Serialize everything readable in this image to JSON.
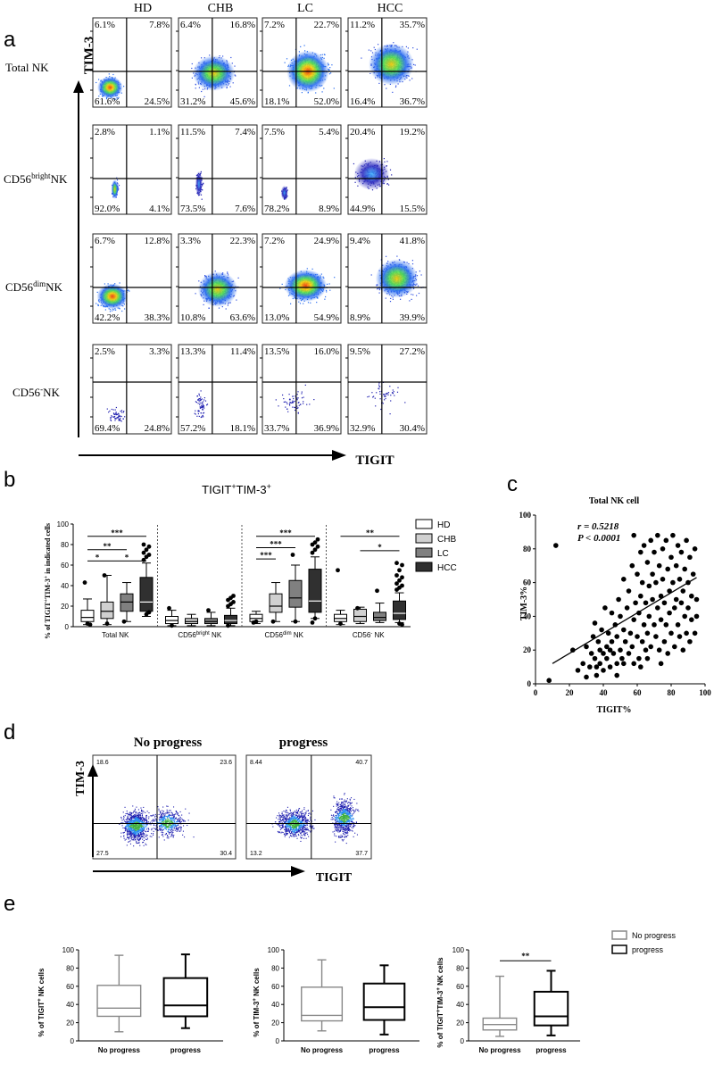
{
  "panel_labels": {
    "a": "a",
    "b": "b",
    "c": "c",
    "d": "d",
    "e": "e"
  },
  "panel_a": {
    "columns": [
      "HD",
      "CHB",
      "LC",
      "HCC"
    ],
    "rows": [
      {
        "label_pre": "Total NK",
        "label_sup": "",
        "label_post": "",
        "quadrants": [
          [
            "6.1%",
            "7.8%",
            "61.6%",
            "24.5%"
          ],
          [
            "6.4%",
            "16.8%",
            "31.2%",
            "45.6%"
          ],
          [
            "7.2%",
            "22.7%",
            "18.1%",
            "52.0%"
          ],
          [
            "11.2%",
            "35.7%",
            "16.4%",
            "36.7%"
          ]
        ]
      },
      {
        "label_pre": "CD56",
        "label_sup": "bright",
        "label_post": "NK",
        "quadrants": [
          [
            "2.8%",
            "1.1%",
            "92.0%",
            "4.1%"
          ],
          [
            "11.5%",
            "7.4%",
            "73.5%",
            "7.6%"
          ],
          [
            "7.5%",
            "5.4%",
            "78.2%",
            "8.9%"
          ],
          [
            "20.4%",
            "19.2%",
            "44.9%",
            "15.5%"
          ]
        ]
      },
      {
        "label_pre": "CD56",
        "label_sup": "dim",
        "label_post": "NK",
        "quadrants": [
          [
            "6.7%",
            "12.8%",
            "42.2%",
            "38.3%"
          ],
          [
            "3.3%",
            "22.3%",
            "10.8%",
            "63.6%"
          ],
          [
            "7.2%",
            "24.9%",
            "13.0%",
            "54.9%"
          ],
          [
            "9.4%",
            "41.8%",
            "8.9%",
            "39.9%"
          ]
        ]
      },
      {
        "label_pre": "CD56",
        "label_sup": "-",
        "label_post": "NK",
        "quadrants": [
          [
            "2.5%",
            "3.3%",
            "69.4%",
            "24.8%"
          ],
          [
            "13.3%",
            "11.4%",
            "57.2%",
            "18.1%"
          ],
          [
            "13.5%",
            "16.0%",
            "33.7%",
            "36.9%"
          ],
          [
            "9.5%",
            "27.2%",
            "32.9%",
            "30.4%"
          ]
        ]
      }
    ],
    "y_axis_label": "TIM-3",
    "x_axis_label": "TIGIT"
  },
  "chart_data": [
    {
      "type": "box",
      "id": "b",
      "title_pre": "TIGIT",
      "title_sup1": "+",
      "title_mid": "TIM-3",
      "title_sup2": "+",
      "ylabel_pre": "% of TIGIT",
      "ylabel_sup1": "+",
      "ylabel_mid": "TIM-3",
      "ylabel_sup2": "+",
      "ylabel_post": " in indicated cells",
      "ylim": [
        0,
        100
      ],
      "yticks": [
        "0",
        "20",
        "40",
        "60",
        "80",
        "100"
      ],
      "group_labels": [
        {
          "pre": "Total NK",
          "sup": "",
          "post": ""
        },
        {
          "pre": "CD56",
          "sup": "bright",
          "post": " NK"
        },
        {
          "pre": "CD56",
          "sup": "dim",
          "post": " NK"
        },
        {
          "pre": "CD56",
          "sup": "-",
          "post": " NK"
        }
      ],
      "legend": [
        {
          "name": "HD",
          "color": "#ffffff"
        },
        {
          "name": "CHB",
          "color": "#d0d0d0"
        },
        {
          "name": "LC",
          "color": "#808080"
        },
        {
          "name": "HCC",
          "color": "#303030"
        }
      ],
      "groups": [
        [
          {
            "min": 2,
            "q1": 5,
            "median": 9,
            "q3": 16,
            "max": 27,
            "outliers": [
              43,
              3,
              2
            ]
          },
          {
            "min": 2,
            "q1": 8,
            "median": 15,
            "q3": 24,
            "max": 50,
            "outliers": [
              50,
              3
            ]
          },
          {
            "min": 5,
            "q1": 15,
            "median": 24,
            "q3": 32,
            "max": 43,
            "outliers": [
              5
            ]
          },
          {
            "min": 10,
            "q1": 15,
            "median": 24,
            "q3": 48,
            "max": 62,
            "outliers": [
              65,
              68,
              70,
              72,
              75,
              78,
              80,
              12,
              14
            ]
          }
        ],
        [
          {
            "min": 1,
            "q1": 3,
            "median": 6,
            "q3": 10,
            "max": 16,
            "outliers": [
              18,
              1
            ]
          },
          {
            "min": 1,
            "q1": 3,
            "median": 5,
            "q3": 8,
            "max": 12,
            "outliers": []
          },
          {
            "min": 1,
            "q1": 3,
            "median": 5,
            "q3": 8,
            "max": 14,
            "outliers": [
              16
            ]
          },
          {
            "min": 1,
            "q1": 3,
            "median": 6,
            "q3": 11,
            "max": 18,
            "outliers": [
              20,
              22,
              24,
              26,
              28,
              30,
              1
            ]
          }
        ],
        [
          {
            "min": 3,
            "q1": 5,
            "median": 8,
            "q3": 12,
            "max": 15,
            "outliers": [
              4,
              5
            ]
          },
          {
            "min": 5,
            "q1": 14,
            "median": 20,
            "q3": 32,
            "max": 43,
            "outliers": [
              5
            ]
          },
          {
            "min": 5,
            "q1": 19,
            "median": 28,
            "q3": 45,
            "max": 60,
            "outliers": [
              70,
              5
            ]
          },
          {
            "min": 8,
            "q1": 14,
            "median": 25,
            "q3": 56,
            "max": 68,
            "outliers": [
              72,
              75,
              78,
              80,
              82,
              85,
              4,
              8
            ]
          }
        ],
        [
          {
            "min": 2,
            "q1": 5,
            "median": 8,
            "q3": 12,
            "max": 16,
            "outliers": [
              55,
              3
            ]
          },
          {
            "min": 3,
            "q1": 5,
            "median": 10,
            "q3": 17,
            "max": 19,
            "outliers": [
              18
            ]
          },
          {
            "min": 4,
            "q1": 6,
            "median": 9,
            "q3": 14,
            "max": 23,
            "outliers": [
              35
            ]
          },
          {
            "min": 4,
            "q1": 7,
            "median": 13,
            "q3": 25,
            "max": 33,
            "outliers": [
              36,
              38,
              40,
              42,
              45,
              48,
              50,
              55,
              60,
              62,
              3,
              2
            ]
          }
        ]
      ],
      "significance": [
        {
          "group": 0,
          "from": 0,
          "to": 3,
          "y": 88,
          "label": "***"
        },
        {
          "group": 0,
          "from": 0,
          "to": 2,
          "y": 75,
          "label": "**"
        },
        {
          "group": 0,
          "from": 0,
          "to": 1,
          "y": 64,
          "label": "*"
        },
        {
          "group": 0,
          "from": 1,
          "to": 3,
          "y": 64,
          "label": "*"
        },
        {
          "group": 2,
          "from": 0,
          "to": 3,
          "y": 88,
          "label": "***"
        },
        {
          "group": 2,
          "from": 0,
          "to": 2,
          "y": 77,
          "label": "***"
        },
        {
          "group": 2,
          "from": 0,
          "to": 1,
          "y": 66,
          "label": "***"
        },
        {
          "group": 3,
          "from": 0,
          "to": 3,
          "y": 88,
          "label": "**"
        },
        {
          "group": 3,
          "from": 1,
          "to": 3,
          "y": 74,
          "label": "*"
        }
      ]
    },
    {
      "type": "scatter",
      "id": "c",
      "title": "Total NK cell",
      "xlabel": "TIGIT%",
      "ylabel": "TIM-3%",
      "xlim": [
        0,
        100
      ],
      "ylim": [
        0,
        100
      ],
      "xticks": [
        "0",
        "20",
        "40",
        "60",
        "80",
        "100"
      ],
      "yticks": [
        "0",
        "20",
        "40",
        "60",
        "80",
        "100"
      ],
      "stat_r": "r = 0.5218",
      "stat_p": "P < 0.0001",
      "fit": {
        "x1": 10,
        "y1": 12,
        "x2": 95,
        "y2": 63
      },
      "points": [
        [
          8,
          2
        ],
        [
          12,
          82
        ],
        [
          22,
          20
        ],
        [
          25,
          8
        ],
        [
          28,
          12
        ],
        [
          30,
          22
        ],
        [
          30,
          4
        ],
        [
          32,
          10
        ],
        [
          33,
          18
        ],
        [
          34,
          28
        ],
        [
          35,
          15
        ],
        [
          35,
          36
        ],
        [
          36,
          10
        ],
        [
          37,
          25
        ],
        [
          38,
          20
        ],
        [
          38,
          12
        ],
        [
          39,
          32
        ],
        [
          40,
          18
        ],
        [
          40,
          8
        ],
        [
          41,
          45
        ],
        [
          42,
          22
        ],
        [
          42,
          15
        ],
        [
          43,
          30
        ],
        [
          44,
          10
        ],
        [
          45,
          42
        ],
        [
          45,
          25
        ],
        [
          46,
          18
        ],
        [
          47,
          35
        ],
        [
          48,
          12
        ],
        [
          48,
          28
        ],
        [
          49,
          50
        ],
        [
          50,
          20
        ],
        [
          50,
          40
        ],
        [
          51,
          15
        ],
        [
          52,
          32
        ],
        [
          52,
          62
        ],
        [
          53,
          25
        ],
        [
          54,
          45
        ],
        [
          55,
          18
        ],
        [
          55,
          55
        ],
        [
          56,
          30
        ],
        [
          57,
          70
        ],
        [
          57,
          22
        ],
        [
          58,
          38
        ],
        [
          58,
          88
        ],
        [
          59,
          48
        ],
        [
          60,
          28
        ],
        [
          60,
          65
        ],
        [
          61,
          15
        ],
        [
          61,
          42
        ],
        [
          62,
          78
        ],
        [
          62,
          52
        ],
        [
          63,
          25
        ],
        [
          63,
          60
        ],
        [
          64,
          35
        ],
        [
          64,
          82
        ],
        [
          65,
          20
        ],
        [
          65,
          48
        ],
        [
          66,
          72
        ],
        [
          66,
          30
        ],
        [
          67,
          58
        ],
        [
          67,
          40
        ],
        [
          68,
          85
        ],
        [
          68,
          22
        ],
        [
          69,
          65
        ],
        [
          69,
          50
        ],
        [
          70,
          35
        ],
        [
          70,
          78
        ],
        [
          71,
          28
        ],
        [
          71,
          60
        ],
        [
          72,
          45
        ],
        [
          72,
          88
        ],
        [
          73,
          20
        ],
        [
          73,
          70
        ],
        [
          74,
          52
        ],
        [
          74,
          38
        ],
        [
          75,
          80
        ],
        [
          75,
          62
        ],
        [
          76,
          25
        ],
        [
          76,
          48
        ],
        [
          77,
          85
        ],
        [
          77,
          35
        ],
        [
          78,
          68
        ],
        [
          78,
          18
        ],
        [
          79,
          55
        ],
        [
          79,
          42
        ],
        [
          80,
          75
        ],
        [
          80,
          30
        ],
        [
          81,
          88
        ],
        [
          81,
          60
        ],
        [
          82,
          45
        ],
        [
          82,
          22
        ],
        [
          83,
          70
        ],
        [
          83,
          50
        ],
        [
          84,
          82
        ],
        [
          84,
          35
        ],
        [
          85,
          62
        ],
        [
          85,
          28
        ],
        [
          86,
          78
        ],
        [
          86,
          48
        ],
        [
          87,
          20
        ],
        [
          87,
          55
        ],
        [
          88,
          68
        ],
        [
          88,
          40
        ],
        [
          89,
          85
        ],
        [
          89,
          30
        ],
        [
          90,
          60
        ],
        [
          90,
          45
        ],
        [
          91,
          75
        ],
        [
          91,
          25
        ],
        [
          92,
          52
        ],
        [
          92,
          38
        ],
        [
          93,
          65
        ],
        [
          94,
          30
        ],
        [
          94,
          80
        ],
        [
          95,
          40
        ],
        [
          95,
          50
        ],
        [
          62,
          10
        ],
        [
          58,
          12
        ],
        [
          66,
          15
        ],
        [
          48,
          5
        ],
        [
          44,
          20
        ],
        [
          52,
          12
        ],
        [
          36,
          5
        ],
        [
          74,
          12
        ]
      ]
    },
    {
      "type": "box",
      "id": "e1",
      "ylabel_pre": "% of TIGIT",
      "ylabel_sup": "+",
      "ylabel_post": " NK cells",
      "ylim": [
        0,
        100
      ],
      "yticks": [
        "0",
        "20",
        "40",
        "60",
        "80",
        "100"
      ],
      "categories": [
        "No progress",
        "progress"
      ],
      "boxes": [
        {
          "min": 10,
          "q1": 27,
          "median": 36,
          "q3": 61,
          "max": 94
        },
        {
          "min": 14,
          "q1": 27,
          "median": 39,
          "q3": 69,
          "max": 95
        }
      ]
    },
    {
      "type": "box",
      "id": "e2",
      "ylabel_pre": "% of TIM-3",
      "ylabel_sup": "+",
      "ylabel_post": " NK cells",
      "ylim": [
        0,
        100
      ],
      "yticks": [
        "0",
        "20",
        "40",
        "60",
        "80",
        "100"
      ],
      "categories": [
        "No progress",
        "progress"
      ],
      "boxes": [
        {
          "min": 11,
          "q1": 22,
          "median": 28,
          "q3": 59,
          "max": 89
        },
        {
          "min": 7,
          "q1": 23,
          "median": 37,
          "q3": 63,
          "max": 83
        }
      ]
    },
    {
      "type": "box",
      "id": "e3",
      "ylabel_pre": "% of TIGIT",
      "ylabel_sup": "+",
      "ylabel_mid": "TIM-3",
      "ylabel_sup2": "+",
      "ylabel_post": " NK cells",
      "ylim": [
        0,
        100
      ],
      "yticks": [
        "0",
        "20",
        "40",
        "60",
        "80",
        "100"
      ],
      "categories": [
        "No progress",
        "progress"
      ],
      "boxes": [
        {
          "min": 5,
          "q1": 12,
          "median": 18,
          "q3": 25,
          "max": 71
        },
        {
          "min": 6,
          "q1": 17,
          "median": 27,
          "q3": 54,
          "max": 77
        }
      ],
      "significance": {
        "label": "**",
        "y": 88
      }
    }
  ],
  "panel_e_legend": [
    {
      "name": "No progress",
      "color": "#888888"
    },
    {
      "name": "progress",
      "color": "#000000"
    }
  ],
  "panel_d": {
    "titles": [
      "No progress",
      "progress"
    ],
    "quadrants": [
      [
        "18.6",
        "23.6",
        "27.5",
        "30.4"
      ],
      [
        "8.44",
        "40.7",
        "13.2",
        "37.7"
      ]
    ],
    "y_axis_label": "TIM-3",
    "x_axis_label": "TIGIT"
  }
}
